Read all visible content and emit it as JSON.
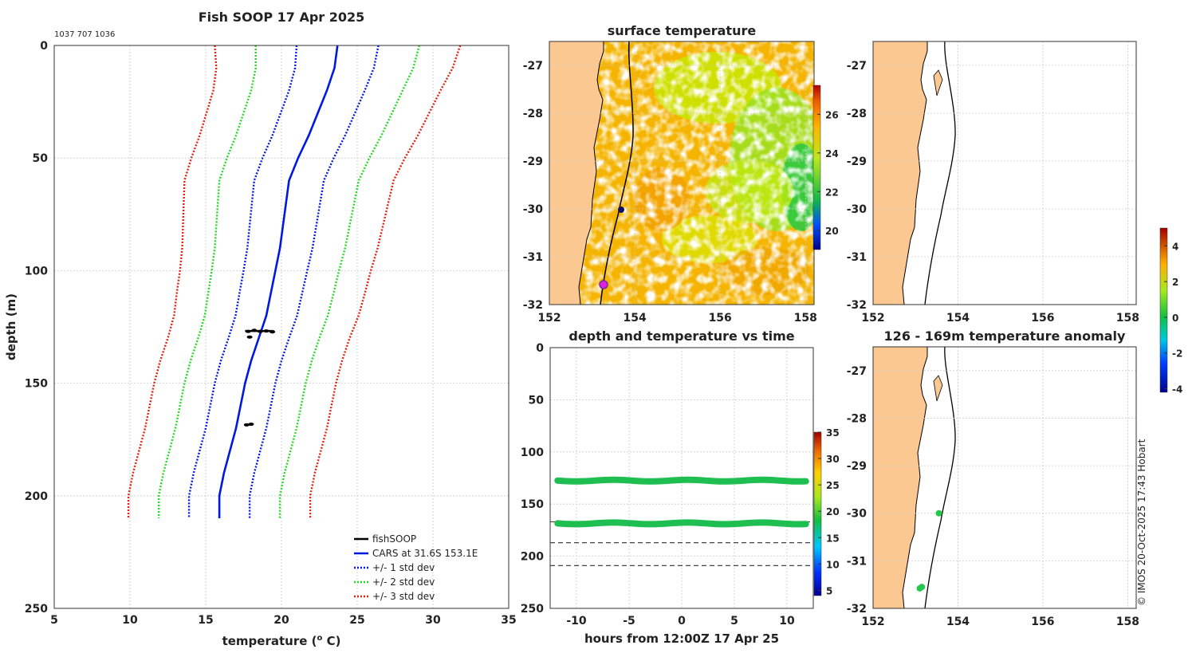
{
  "chart_data": [
    {
      "type": "line",
      "title": "Fish SOOP 17 Apr 2025",
      "subtitle": "1037 707 1036",
      "xlabel": "temperature",
      "ylabel": "depth (m)",
      "xlim": [
        5,
        35
      ],
      "ylim": [
        250,
        0
      ],
      "xticks": [
        "5",
        "10",
        "15",
        "20",
        "25",
        "30",
        "35"
      ],
      "yticks": [
        "0",
        "50",
        "100",
        "150",
        "200",
        "250"
      ],
      "depth": [
        0,
        10,
        20,
        30,
        40,
        50,
        60,
        70,
        80,
        90,
        100,
        110,
        120,
        130,
        140,
        150,
        160,
        170,
        180,
        190,
        200,
        210
      ],
      "cars_mean": [
        23.7,
        23.5,
        23.0,
        22.4,
        21.8,
        21.1,
        20.5,
        20.3,
        20.1,
        19.9,
        19.6,
        19.3,
        19.0,
        18.5,
        18.0,
        17.6,
        17.3,
        17.0,
        16.6,
        16.2,
        15.9,
        15.9
      ],
      "std_dev": [
        2.7,
        2.6,
        2.5,
        2.45,
        2.4,
        2.35,
        2.3,
        2.25,
        2.2,
        2.15,
        2.1,
        2.07,
        2.03,
        2.0,
        2.0,
        2.0,
        2.0,
        2.0,
        2.0,
        2.0,
        2.0,
        2.0
      ],
      "series": [
        {
          "name": "fishSOOP",
          "color": "#000000",
          "points": [
            [
              17.8,
              127
            ],
            [
              18.2,
              126.5
            ],
            [
              18.6,
              127
            ],
            [
              19.0,
              126.8
            ],
            [
              19.4,
              127.2
            ],
            [
              17.9,
              129.5
            ],
            [
              17.7,
              168.5
            ],
            [
              18.0,
              168.2
            ]
          ]
        },
        {
          "name": "CARS at 31.6S 153.1E",
          "color": "#0018e0"
        },
        {
          "name": "+/- 1 std dev",
          "color": "#0018e0"
        },
        {
          "name": "+/- 2 std dev",
          "color": "#22d822"
        },
        {
          "name": "+/- 3 std dev",
          "color": "#e02010"
        }
      ]
    },
    {
      "type": "heatmap",
      "title": "surface temperature",
      "xlim": [
        152,
        158.2
      ],
      "ylim": [
        -32,
        -26.5
      ],
      "xticks": [
        "152",
        "154",
        "156",
        "158"
      ],
      "yticks": [
        "-27",
        "-28",
        "-29",
        "-30",
        "-31",
        "-32"
      ],
      "colorbar": {
        "range": [
          19,
          27.5
        ],
        "ticks": [
          "20",
          "22",
          "24",
          "26"
        ]
      },
      "markers": [
        {
          "name": "current-position",
          "lon": 153.55,
          "lat": -30.0,
          "color": "#101060"
        },
        {
          "name": "start-position",
          "lon": 153.1,
          "lat": -31.6,
          "color": "#e020e0"
        }
      ]
    },
    {
      "type": "scatter",
      "title": "depth and temperature vs time",
      "xlabel": "hours from 12:00Z 17 Apr 25",
      "xlim": [
        -12.5,
        12.5
      ],
      "ylim": [
        250,
        0
      ],
      "xticks": [
        "-10",
        "-5",
        "0",
        "5",
        "10"
      ],
      "yticks": [
        "0",
        "50",
        "100",
        "150",
        "200",
        "250"
      ],
      "colorbar": {
        "range": [
          4,
          35
        ],
        "ticks": [
          "5",
          "10",
          "15",
          "20",
          "25",
          "30",
          "35"
        ]
      },
      "series": [
        {
          "name": "upper-sensor",
          "depth": 127.5,
          "x_range": [
            -11.8,
            11.8
          ],
          "color": "#1fbe50"
        },
        {
          "name": "lower-sensor",
          "depth": 168.5,
          "x_range": [
            -11.8,
            11.8
          ],
          "color": "#1fbe50"
        }
      ],
      "reference_lines": [
        167,
        187,
        209
      ]
    },
    {
      "type": "scatter",
      "title": "",
      "xlim": [
        152,
        158.2
      ],
      "ylim": [
        -32,
        -26.5
      ],
      "xticks": [
        "152",
        "154",
        "156",
        "158"
      ],
      "yticks": [
        "-27",
        "-28",
        "-29",
        "-30",
        "-31",
        "-32"
      ]
    },
    {
      "type": "scatter",
      "title": "126 - 169m temperature anomaly",
      "xlim": [
        152,
        158.2
      ],
      "ylim": [
        -32,
        -26.5
      ],
      "xticks": [
        "152",
        "154",
        "156",
        "158"
      ],
      "yticks": [
        "-27",
        "-28",
        "-29",
        "-30",
        "-31",
        "-32"
      ],
      "colorbar": {
        "range": [
          -4.2,
          5
        ],
        "ticks": [
          "4",
          "2",
          "0",
          "-2",
          "-4"
        ]
      },
      "points": [
        {
          "lon": 153.55,
          "lat": -30.0,
          "color": "#22c84c"
        },
        {
          "lon": 153.1,
          "lat": -31.58,
          "color": "#22c84c"
        },
        {
          "lon": 153.15,
          "lat": -31.55,
          "color": "#22c84c"
        }
      ]
    }
  ],
  "legend": [
    {
      "label": "fishSOOP"
    },
    {
      "label": "CARS at 31.6S 153.1E"
    },
    {
      "label": "+/- 1 std dev"
    },
    {
      "label": "+/- 2 std dev"
    },
    {
      "label": "+/- 3 std dev"
    }
  ],
  "xlabel_main": {
    "text": "temperature (",
    "sup": "o",
    "suffix": " C)"
  },
  "credit": "© IMOS 20-Oct-2025 17:43 Hobart",
  "colors": {
    "land": "#fbc891",
    "blue": "#0018e0",
    "green": "#22d822",
    "red": "#e02010"
  }
}
